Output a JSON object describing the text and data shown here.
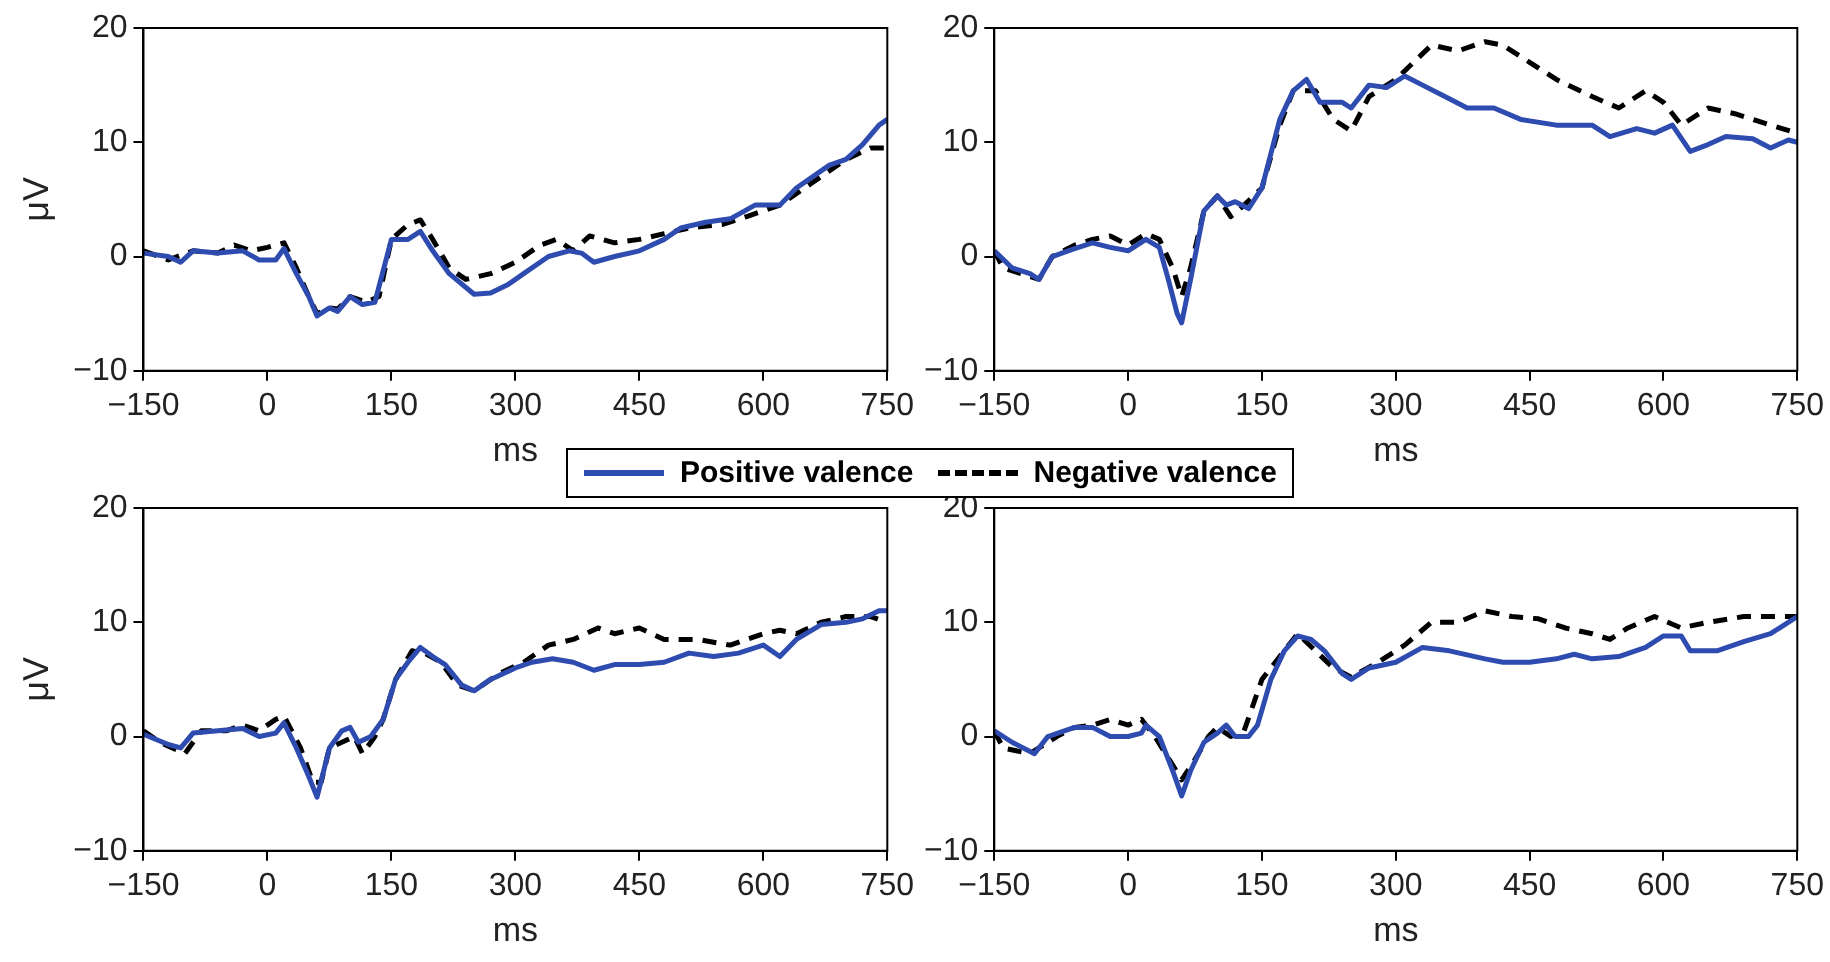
{
  "chart_data": [
    {
      "type": "line",
      "xlabel": "ms",
      "ylabel": "μV",
      "xlim": [
        -150,
        750
      ],
      "ylim": [
        -10,
        20
      ],
      "xticks": [
        -150,
        0,
        150,
        300,
        450,
        600,
        750
      ],
      "yticks": [
        -10,
        0,
        10,
        20
      ],
      "grid": false,
      "legend": "bottom",
      "marker": "none",
      "series": [
        {
          "name": "Positive valence",
          "color": "#2e4bb0",
          "line_style": "solid",
          "x": [
            -150,
            -120,
            -105,
            -90,
            -60,
            -30,
            -10,
            10,
            20,
            35,
            50,
            60,
            75,
            85,
            100,
            115,
            130,
            150,
            170,
            185,
            200,
            220,
            250,
            270,
            290,
            310,
            340,
            365,
            380,
            395,
            420,
            450,
            480,
            500,
            530,
            560,
            590,
            620,
            640,
            680,
            700,
            720,
            740,
            750
          ],
          "values": [
            0.3,
            0,
            -0.5,
            0.5,
            0.3,
            0.5,
            -0.3,
            -0.3,
            0.7,
            -1.5,
            -3.5,
            -5.2,
            -4.5,
            -4.8,
            -3.5,
            -4.2,
            -4,
            1.5,
            1.5,
            2.2,
            0.5,
            -1.5,
            -3.3,
            -3.2,
            -2.5,
            -1.5,
            0,
            0.5,
            0.3,
            -0.5,
            0,
            0.5,
            1.5,
            2.5,
            3,
            3.3,
            4.5,
            4.5,
            6,
            8,
            8.5,
            9.8,
            11.5,
            12
          ]
        },
        {
          "name": "Negative valence",
          "color": "#000000",
          "line_style": "dashed",
          "x": [
            -150,
            -120,
            -90,
            -60,
            -40,
            -20,
            0,
            20,
            35,
            50,
            60,
            75,
            85,
            100,
            120,
            135,
            150,
            170,
            185,
            200,
            220,
            240,
            270,
            300,
            330,
            350,
            370,
            390,
            420,
            450,
            480,
            510,
            550,
            580,
            620,
            660,
            700,
            730,
            750
          ],
          "values": [
            0.5,
            -0.3,
            0.5,
            0.3,
            1,
            0.5,
            0.8,
            1.2,
            -1,
            -3.5,
            -5,
            -4.5,
            -4.6,
            -3.5,
            -4,
            -3.5,
            1.5,
            2.8,
            3.2,
            1.5,
            -1,
            -2,
            -1.5,
            -0.5,
            1,
            1.5,
            0.5,
            1.8,
            1.2,
            1.5,
            2,
            2.5,
            2.8,
            3.5,
            4.5,
            6.5,
            8.5,
            9.5,
            9.5
          ]
        }
      ]
    },
    {
      "type": "line",
      "xlabel": "ms",
      "xlim": [
        -150,
        750
      ],
      "ylim": [
        -10,
        20
      ],
      "xticks": [
        -150,
        0,
        150,
        300,
        450,
        600,
        750
      ],
      "yticks": [
        -10,
        0,
        10,
        20
      ],
      "grid": false,
      "marker": "none",
      "series": [
        {
          "color": "#2e4bb0",
          "line_style": "solid",
          "x": [
            -150,
            -130,
            -110,
            -100,
            -85,
            -60,
            -40,
            -20,
            0,
            20,
            35,
            45,
            55,
            60,
            70,
            85,
            100,
            110,
            120,
            135,
            150,
            170,
            185,
            200,
            215,
            240,
            250,
            270,
            290,
            310,
            330,
            360,
            380,
            410,
            440,
            480,
            520,
            540,
            570,
            590,
            610,
            630,
            650,
            670,
            700,
            720,
            740,
            750
          ],
          "values": [
            0.5,
            -1,
            -1.5,
            -2,
            0,
            0.7,
            1.2,
            0.8,
            0.5,
            1.5,
            0.8,
            -2,
            -5,
            -5.8,
            -2,
            4,
            5.3,
            4.5,
            4.8,
            4.2,
            6,
            12,
            14.5,
            15.5,
            13.5,
            13.5,
            13,
            15,
            14.8,
            15.8,
            15,
            13.8,
            13,
            13,
            12,
            11.5,
            11.5,
            10.5,
            11.2,
            10.8,
            11.5,
            9.2,
            9.8,
            10.5,
            10.3,
            9.5,
            10.2,
            10
          ]
        },
        {
          "color": "#000000",
          "line_style": "dashed",
          "x": [
            -150,
            -140,
            -120,
            -100,
            -85,
            -60,
            -40,
            -20,
            0,
            20,
            35,
            50,
            60,
            70,
            85,
            100,
            115,
            130,
            150,
            170,
            185,
            210,
            230,
            250,
            270,
            300,
            320,
            340,
            370,
            400,
            420,
            450,
            480,
            520,
            550,
            580,
            600,
            620,
            650,
            680,
            720,
            750
          ],
          "values": [
            0.5,
            -1,
            -1.5,
            -2,
            0,
            1,
            1.5,
            1.8,
            1,
            2,
            1.5,
            -1,
            -3.5,
            -1,
            4,
            5.3,
            3.5,
            4.5,
            6,
            11.5,
            14.5,
            14.5,
            12,
            11,
            14,
            15.5,
            17,
            18.5,
            18,
            18.8,
            18.5,
            17,
            15.5,
            14,
            13,
            14.5,
            13.5,
            11.5,
            13,
            12.5,
            11.5,
            10.8
          ]
        }
      ]
    },
    {
      "type": "line",
      "xlabel": "ms",
      "ylabel": "μV",
      "xlim": [
        -150,
        750
      ],
      "ylim": [
        -10,
        20
      ],
      "xticks": [
        -150,
        0,
        150,
        300,
        450,
        600,
        750
      ],
      "yticks": [
        -10,
        0,
        10,
        20
      ],
      "grid": false,
      "marker": "none",
      "series": [
        {
          "color": "#2e4bb0",
          "line_style": "solid",
          "x": [
            -150,
            -120,
            -105,
            -90,
            -60,
            -30,
            -10,
            10,
            20,
            35,
            50,
            60,
            75,
            90,
            100,
            110,
            125,
            140,
            155,
            170,
            185,
            200,
            215,
            235,
            250,
            270,
            300,
            320,
            345,
            370,
            395,
            420,
            450,
            480,
            510,
            540,
            570,
            600,
            620,
            640,
            670,
            700,
            720,
            740,
            750
          ],
          "values": [
            0.2,
            -0.7,
            -1,
            0.3,
            0.5,
            0.7,
            0,
            0.3,
            1.2,
            -1,
            -3.5,
            -5.3,
            -1,
            0.5,
            0.8,
            -0.5,
            0,
            1.5,
            5,
            6.5,
            7.8,
            7,
            6.3,
            4.5,
            4,
            5,
            6,
            6.5,
            6.8,
            6.5,
            5.8,
            6.3,
            6.3,
            6.5,
            7.3,
            7,
            7.3,
            8,
            7,
            8.5,
            9.8,
            10,
            10.3,
            11,
            11
          ]
        },
        {
          "color": "#000000",
          "line_style": "dashed",
          "x": [
            -150,
            -130,
            -100,
            -80,
            -50,
            -30,
            -10,
            10,
            20,
            40,
            55,
            65,
            75,
            90,
            105,
            115,
            130,
            140,
            155,
            175,
            190,
            210,
            230,
            250,
            280,
            310,
            340,
            370,
            400,
            420,
            450,
            480,
            520,
            560,
            600,
            620,
            640,
            670,
            700,
            730,
            750
          ],
          "values": [
            0.5,
            -0.5,
            -1.5,
            0.5,
            0.5,
            1,
            0.5,
            1.5,
            1.8,
            -1,
            -4,
            -4,
            -1,
            -0.5,
            0,
            -1.5,
            0,
            1.5,
            5,
            7.5,
            7.3,
            6.5,
            4.5,
            4,
            5.5,
            6.5,
            8,
            8.5,
            9.5,
            9,
            9.5,
            8.5,
            8.5,
            8,
            9,
            9.3,
            9,
            10,
            10.5,
            10.5,
            10
          ]
        }
      ]
    },
    {
      "type": "line",
      "xlabel": "ms",
      "xlim": [
        -150,
        750
      ],
      "ylim": [
        -10,
        20
      ],
      "xticks": [
        -150,
        0,
        150,
        300,
        450,
        600,
        750
      ],
      "yticks": [
        -10,
        0,
        10,
        20
      ],
      "grid": false,
      "marker": "none",
      "series": [
        {
          "color": "#2e4bb0",
          "line_style": "solid",
          "x": [
            -150,
            -130,
            -105,
            -90,
            -60,
            -40,
            -20,
            0,
            15,
            20,
            35,
            50,
            60,
            70,
            85,
            100,
            110,
            120,
            135,
            145,
            160,
            175,
            190,
            205,
            220,
            240,
            250,
            270,
            300,
            330,
            360,
            400,
            420,
            450,
            480,
            500,
            520,
            550,
            580,
            600,
            620,
            630,
            660,
            690,
            720,
            750
          ],
          "values": [
            0.5,
            -0.5,
            -1.5,
            0,
            0.8,
            0.8,
            0,
            0,
            0.3,
            1,
            0,
            -3,
            -5.2,
            -3,
            -0.5,
            0.3,
            1,
            0,
            0,
            1,
            5,
            7.5,
            8.8,
            8.5,
            7.5,
            5.5,
            5,
            6,
            6.5,
            7.8,
            7.5,
            6.8,
            6.5,
            6.5,
            6.8,
            7.2,
            6.8,
            7,
            7.8,
            8.8,
            8.8,
            7.5,
            7.5,
            8.3,
            9,
            10.5
          ]
        },
        {
          "color": "#000000",
          "line_style": "dashed",
          "x": [
            -150,
            -140,
            -110,
            -80,
            -60,
            -40,
            -20,
            0,
            15,
            30,
            50,
            60,
            75,
            90,
            100,
            115,
            130,
            150,
            175,
            190,
            210,
            230,
            250,
            280,
            310,
            340,
            370,
            400,
            430,
            460,
            490,
            520,
            540,
            560,
            590,
            620,
            650,
            690,
            720,
            750
          ],
          "values": [
            0.5,
            -1,
            -1.5,
            0,
            0.8,
            1,
            1.5,
            1,
            1.5,
            0,
            -2.5,
            -3.8,
            -2,
            0,
            0.8,
            0,
            0.5,
            5,
            7.5,
            9,
            7.5,
            6,
            5.2,
            6.5,
            8,
            10,
            10,
            11,
            10.5,
            10.3,
            9.5,
            9,
            8.5,
            9.5,
            10.5,
            9.5,
            10,
            10.5,
            10.5,
            10.5
          ]
        }
      ]
    }
  ]
}
